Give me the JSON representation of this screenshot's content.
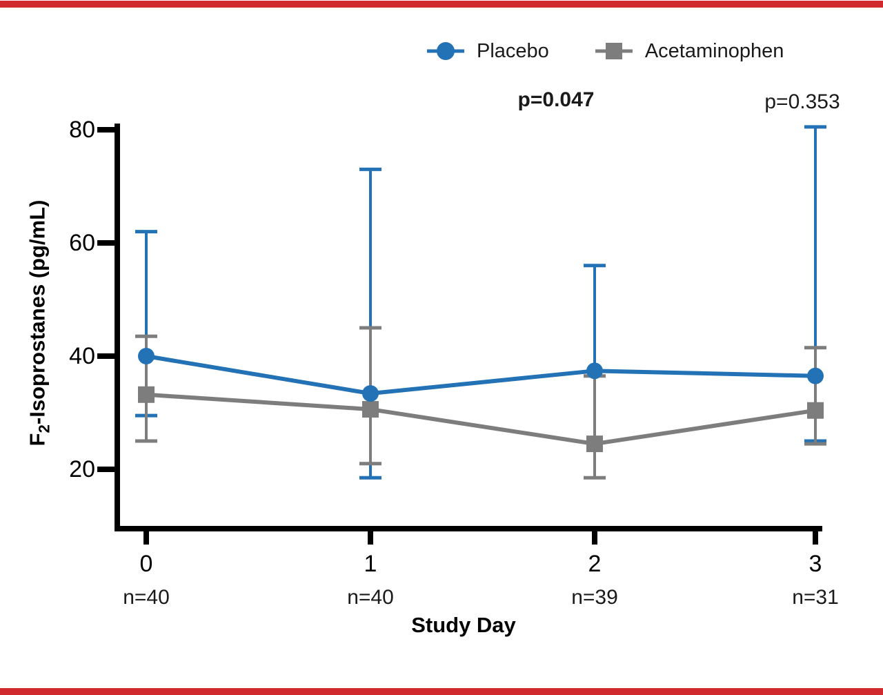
{
  "page": {
    "background": "#ffffff",
    "top_border_color": "#d12a2e",
    "bottom_border_color": "#d12a2e"
  },
  "colors": {
    "placebo_blue": "#2272b5",
    "acetaminophen_gray": "#7d7d7d",
    "axis_black": "#000000"
  },
  "legend": [
    {
      "label": "Placebo",
      "marker": "circle",
      "color": "#2272b5"
    },
    {
      "label": "Acetaminophen",
      "marker": "square",
      "color": "#7d7d7d"
    }
  ],
  "annotations": [
    {
      "text": "p=0.047",
      "bold": true,
      "day": 2
    },
    {
      "text": "p=0.353",
      "bold": false,
      "day": 3
    }
  ],
  "chart_data": {
    "type": "line",
    "title": "",
    "xlabel": "Study Day",
    "ylabel": "F2-Isoprostanes (pg/mL)",
    "ylabel_parts": {
      "prefix": "F",
      "sub": "2",
      "rest": "-Isoprostanes (pg/mL)"
    },
    "x": [
      0,
      1,
      2,
      3
    ],
    "x_tick_labels": [
      "0",
      "1",
      "2",
      "3"
    ],
    "n_labels": [
      "n=40",
      "n=40",
      "n=39",
      "n=31"
    ],
    "yticks": [
      20,
      40,
      60,
      80
    ],
    "ylim": [
      9,
      81
    ],
    "grid": false,
    "legend_position": "top-center",
    "error_bar_style": "asymmetric caps, upper and lower where visible",
    "series": [
      {
        "name": "Placebo",
        "color": "#2272b5",
        "marker": "circle",
        "values": [
          40.0,
          33.4,
          37.4,
          36.5
        ],
        "err_low": [
          29.5,
          18.5,
          null,
          25.0
        ],
        "err_high": [
          62.0,
          73.0,
          56.0,
          80.5
        ]
      },
      {
        "name": "Acetaminophen",
        "color": "#7d7d7d",
        "marker": "square",
        "values": [
          33.2,
          30.6,
          24.5,
          30.4
        ],
        "err_low": [
          25.0,
          21.0,
          18.5,
          24.5
        ],
        "err_high": [
          43.5,
          45.0,
          36.5,
          41.5
        ]
      }
    ]
  }
}
